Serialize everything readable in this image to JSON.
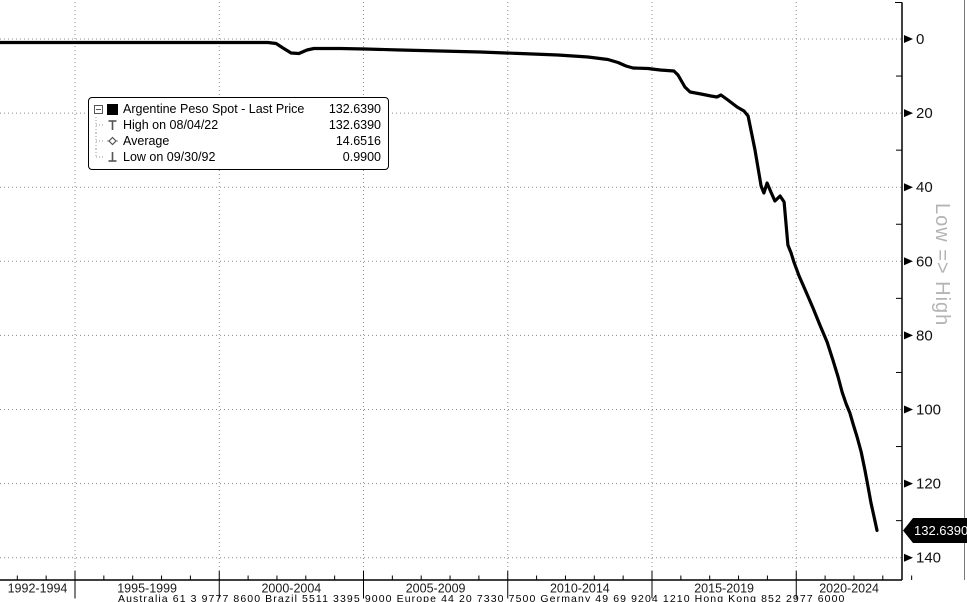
{
  "legend": {
    "rows": [
      {
        "icon": "series-swatch",
        "label": "Argentine Peso Spot - Last Price",
        "value": "132.6390"
      },
      {
        "icon": "high-marker",
        "label": "High on 08/04/22",
        "value": "132.6390"
      },
      {
        "icon": "average-marker",
        "label": "Average",
        "value": "14.6516"
      },
      {
        "icon": "low-marker",
        "label": "Low on 09/30/92",
        "value": "0.9900"
      }
    ]
  },
  "right_axis_caption": "Low => High",
  "last_price_badge": "132.6390",
  "footer_text": "Australia 61 3 9777 8600 Brazil 5511 3395 9000 Europe 44 20 7330 7500 Germany 49 69 9204 1210 Hong Kong 852 2977 6000",
  "colors": {
    "line": "#000000",
    "grid": "#8c8c8c",
    "axis": "#000000",
    "badge_bg": "#000000",
    "badge_text": "#ffffff",
    "caption_gray": "#b4b4b4"
  },
  "chart_data": {
    "type": "line",
    "title": "Argentine Peso Spot - Last Price",
    "xlabel": "",
    "ylabel": "Low => High",
    "y_axis_side": "right",
    "y_axis_inverted": true,
    "ylim": [
      0,
      140
    ],
    "grid": true,
    "y_ticks": [
      0,
      20,
      40,
      60,
      80,
      100,
      120,
      140
    ],
    "x_tick_labels": [
      "1992-1994",
      "1995-1999",
      "2000-2004",
      "2005-2009",
      "2010-2014",
      "2015-2019",
      "2020-2024"
    ],
    "x_gridline_years": [
      1995,
      2000,
      2005,
      2010,
      2015,
      2020
    ],
    "x_minor_tick_step_years": 1,
    "x_range_years": [
      1992.4,
      2024.7
    ],
    "stats": {
      "last": 132.639,
      "high": {
        "date": "08/04/22",
        "value": 132.639
      },
      "average": 14.6516,
      "low": {
        "date": "09/30/92",
        "value": 0.99
      }
    },
    "series": [
      {
        "name": "Argentine Peso Spot - Last Price",
        "points": [
          [
            1992.4,
            0.94
          ],
          [
            2001.69,
            0.94
          ],
          [
            2001.97,
            1.21
          ],
          [
            2002.21,
            2.43
          ],
          [
            2002.49,
            3.78
          ],
          [
            2002.76,
            3.91
          ],
          [
            2003.04,
            2.97
          ],
          [
            2003.28,
            2.56
          ],
          [
            2004.19,
            2.56
          ],
          [
            2005.05,
            2.7
          ],
          [
            2006.27,
            2.97
          ],
          [
            2007.65,
            3.24
          ],
          [
            2009.04,
            3.51
          ],
          [
            2010.42,
            3.91
          ],
          [
            2011.74,
            4.32
          ],
          [
            2012.78,
            4.86
          ],
          [
            2013.47,
            5.53
          ],
          [
            2013.82,
            6.34
          ],
          [
            2014.1,
            7.29
          ],
          [
            2014.34,
            7.83
          ],
          [
            2014.86,
            7.96
          ],
          [
            2015.28,
            8.37
          ],
          [
            2015.76,
            8.64
          ],
          [
            2015.9,
            9.72
          ],
          [
            2016.14,
            12.96
          ],
          [
            2016.32,
            14.3
          ],
          [
            2016.7,
            14.84
          ],
          [
            2017.04,
            15.38
          ],
          [
            2017.25,
            15.65
          ],
          [
            2017.39,
            15.11
          ],
          [
            2017.63,
            16.46
          ],
          [
            2017.95,
            18.35
          ],
          [
            2018.19,
            19.43
          ],
          [
            2018.33,
            20.78
          ],
          [
            2018.57,
            29.96
          ],
          [
            2018.78,
            39.68
          ],
          [
            2018.88,
            41.57
          ],
          [
            2018.99,
            38.87
          ],
          [
            2019.12,
            41.3
          ],
          [
            2019.26,
            43.72
          ],
          [
            2019.44,
            42.38
          ],
          [
            2019.58,
            44.0
          ],
          [
            2019.71,
            55.6
          ],
          [
            2019.82,
            57.76
          ],
          [
            2019.92,
            60.19
          ],
          [
            2020.1,
            63.97
          ],
          [
            2020.34,
            68.29
          ],
          [
            2020.58,
            72.6
          ],
          [
            2020.82,
            77.19
          ],
          [
            2021.07,
            81.78
          ],
          [
            2021.27,
            86.64
          ],
          [
            2021.45,
            91.23
          ],
          [
            2021.59,
            95.28
          ],
          [
            2021.73,
            98.52
          ],
          [
            2021.86,
            100.94
          ],
          [
            2021.97,
            103.91
          ],
          [
            2022.11,
            107.42
          ],
          [
            2022.25,
            111.47
          ],
          [
            2022.38,
            116.33
          ],
          [
            2022.49,
            120.92
          ],
          [
            2022.59,
            125.24
          ],
          [
            2022.7,
            129.02
          ],
          [
            2022.8,
            132.64
          ]
        ]
      }
    ]
  }
}
